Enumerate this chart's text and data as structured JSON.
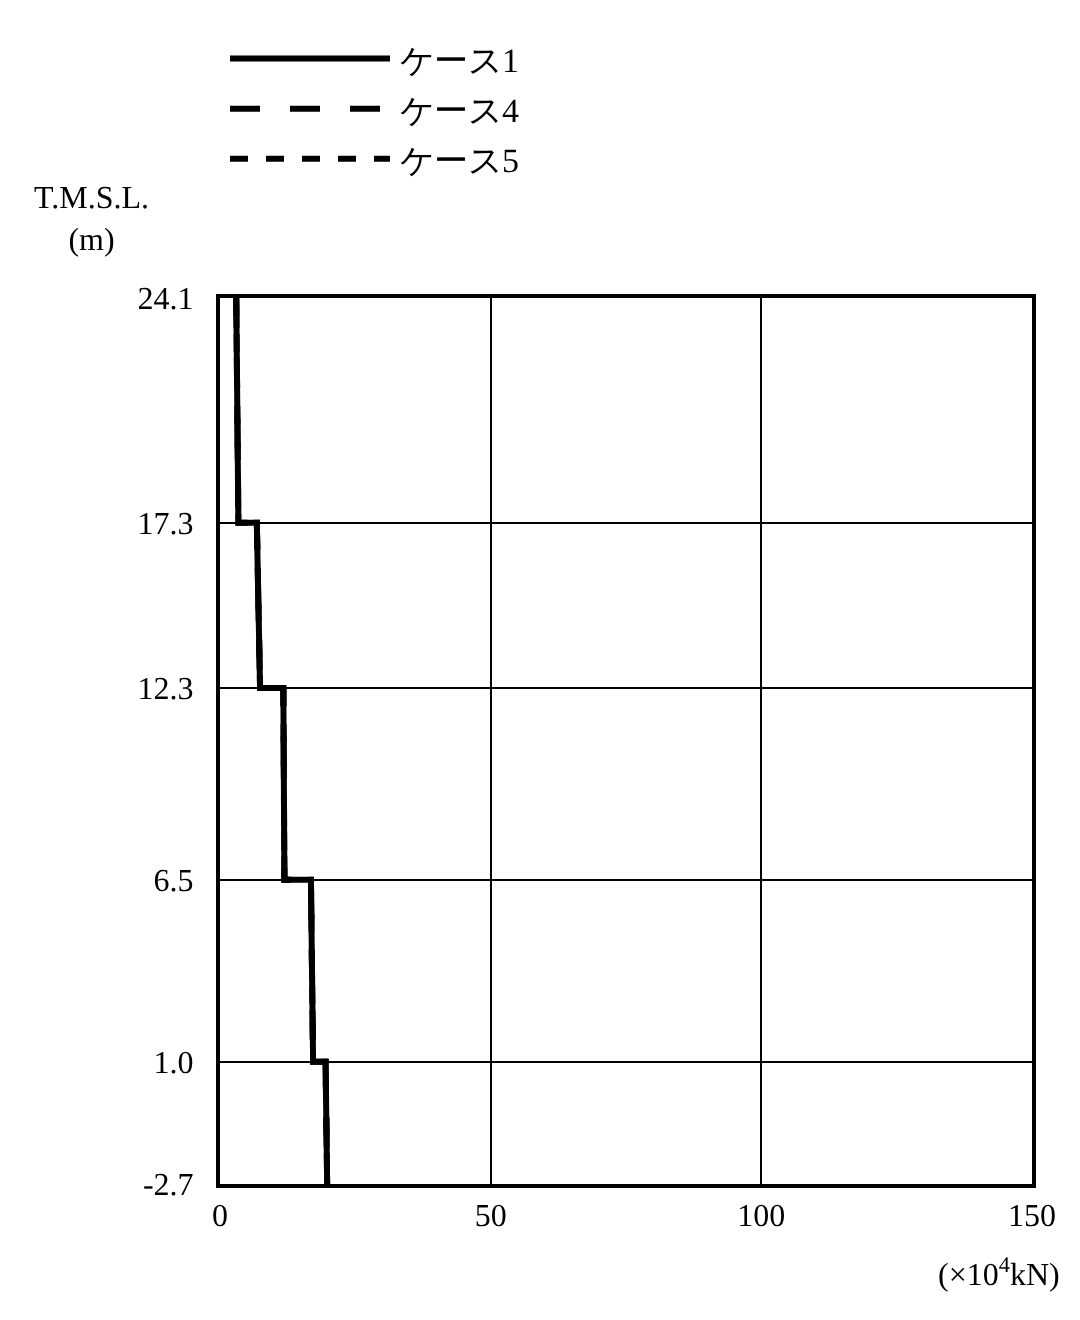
{
  "chart_data": {
    "type": "line",
    "ylabel": "T.M.S.L.\n(m)",
    "xlabel": "(×10$^{4}$kN)",
    "series": [
      {
        "name": "ケース1",
        "color": "#000000",
        "line_style": "solid",
        "x": [
          3.0,
          3.4,
          6.8,
          7.4,
          11.7,
          11.9,
          16.8,
          17.2,
          19.5,
          19.8
        ],
        "values": [
          24.1,
          17.3,
          17.3,
          12.3,
          12.3,
          6.5,
          6.5,
          1.0,
          1.0,
          -2.7
        ]
      },
      {
        "name": "ケース4",
        "color": "#000000",
        "line_style": "dashed",
        "x": [
          3.0,
          3.4,
          6.8,
          7.4,
          11.7,
          11.9,
          16.8,
          17.2,
          19.5,
          19.8
        ],
        "values": [
          24.1,
          17.3,
          17.3,
          12.3,
          12.3,
          6.5,
          6.5,
          1.0,
          1.0,
          -2.7
        ]
      },
      {
        "name": "ケース5",
        "color": "#000000",
        "line_style": "dotted",
        "x": [
          3.0,
          3.4,
          6.8,
          7.4,
          11.7,
          11.9,
          16.8,
          17.2,
          19.5,
          19.8
        ],
        "values": [
          24.1,
          17.3,
          17.3,
          12.3,
          12.3,
          6.5,
          6.5,
          1.0,
          1.0,
          -2.7
        ]
      }
    ],
    "xlim": [
      0,
      150
    ],
    "xticks": [
      0,
      50,
      100,
      150
    ],
    "ylim": [
      -2.7,
      24.1
    ],
    "yticks": [
      -2.7,
      {
        "value": 1,
        "label": "1.0"
      },
      6.5,
      12.3,
      17.3,
      24.1
    ],
    "grid": true,
    "legend": "top left",
    "marker": "none"
  }
}
